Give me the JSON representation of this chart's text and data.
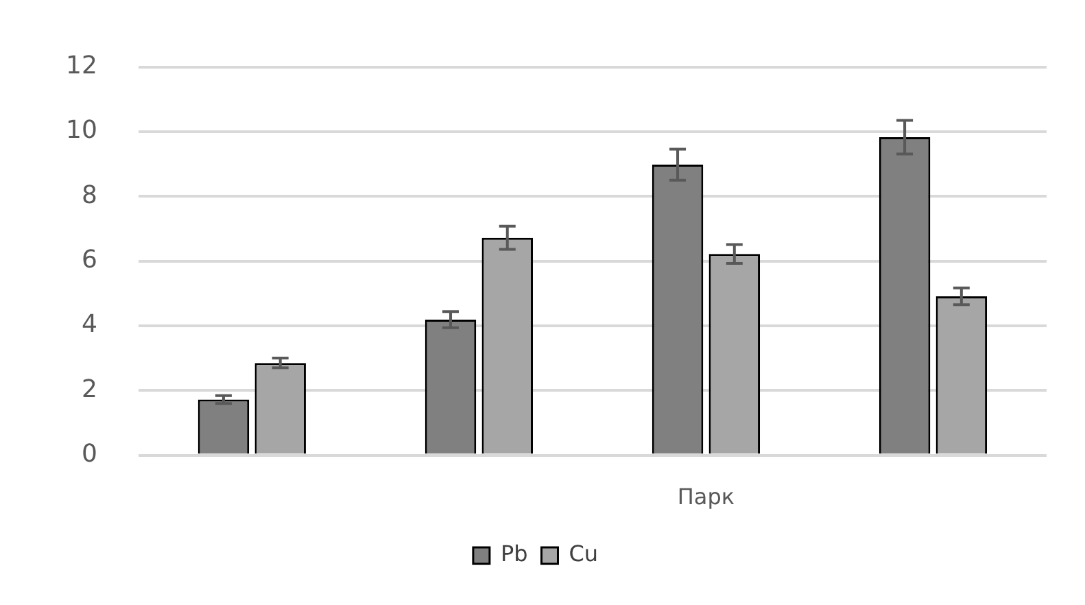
{
  "chart_data": {
    "type": "bar",
    "categories": [
      null,
      null,
      "Парк",
      null
    ],
    "series": [
      {
        "name": "Pb",
        "color": "#808080",
        "values": [
          1.72,
          4.19,
          8.98,
          9.83
        ],
        "errors": [
          0.12,
          0.25,
          0.48,
          0.52
        ]
      },
      {
        "name": "Cu",
        "color": "#a6a6a6",
        "values": [
          2.85,
          6.72,
          6.22,
          4.91
        ],
        "errors": [
          0.15,
          0.36,
          0.29,
          0.26
        ]
      }
    ],
    "ylim": [
      0,
      12
    ],
    "yticks": [
      0,
      2,
      4,
      6,
      8,
      10,
      12
    ],
    "grid": "y",
    "legend": "bottom"
  }
}
